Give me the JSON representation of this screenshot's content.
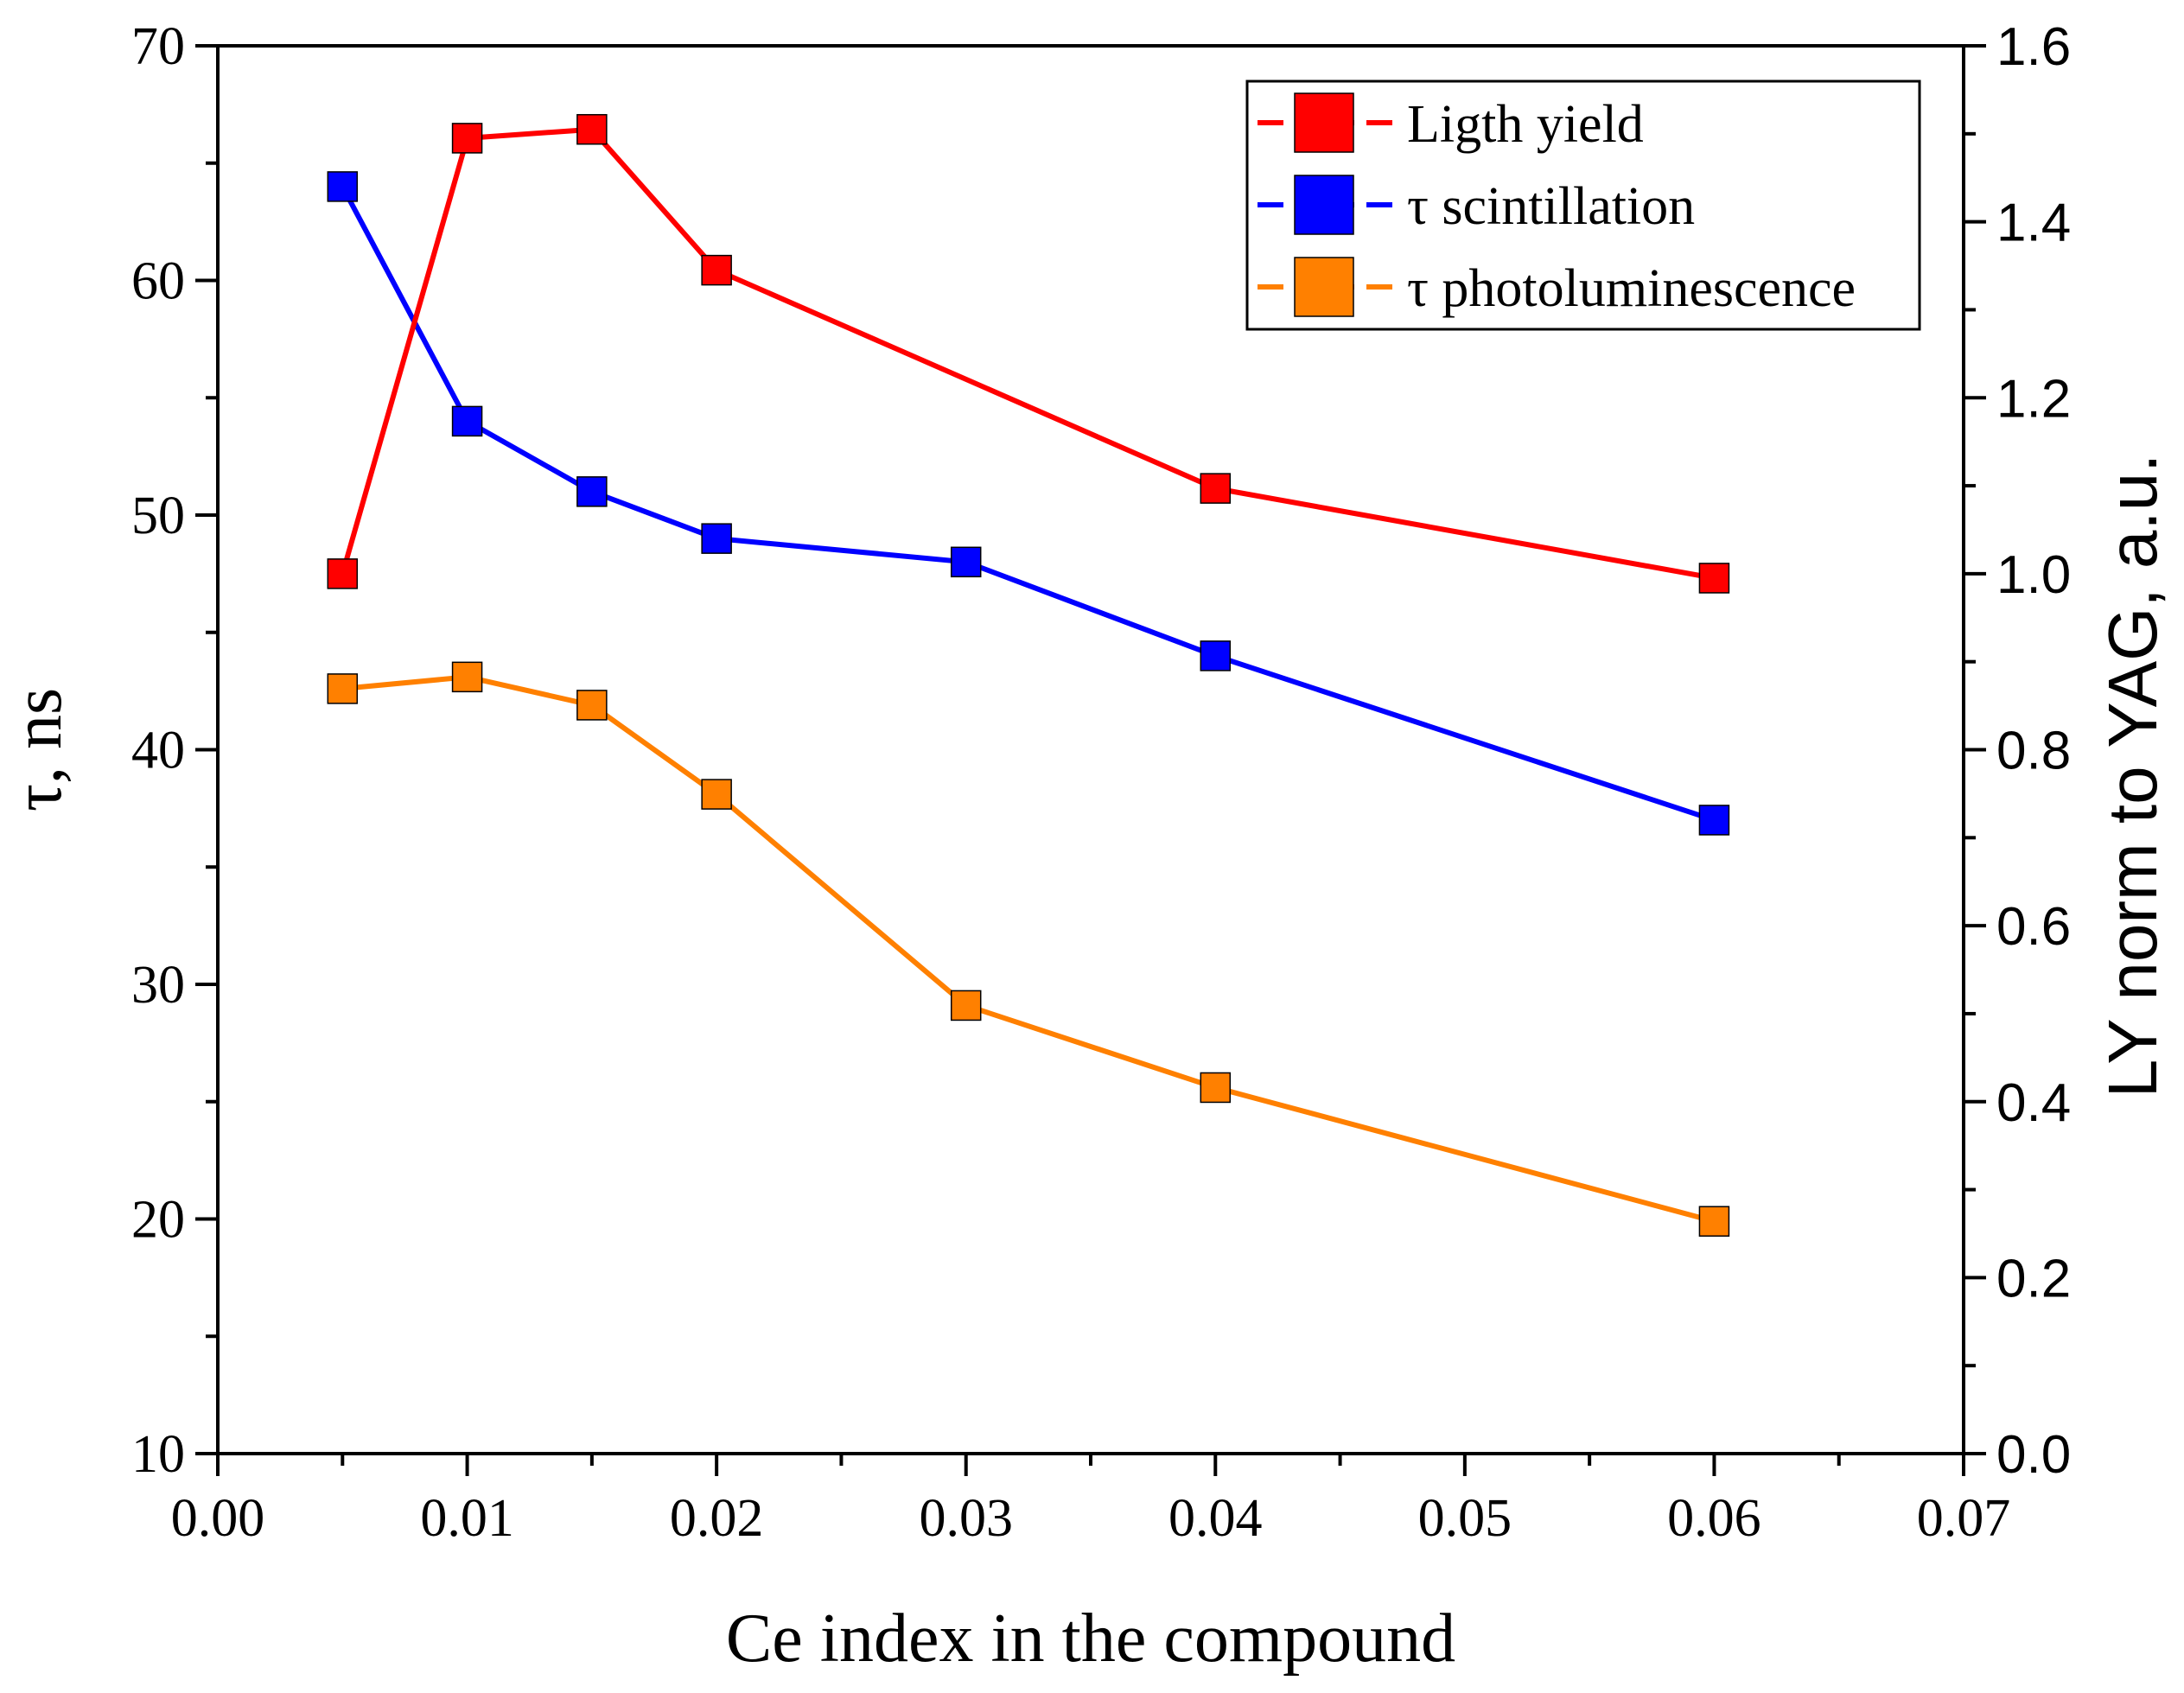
{
  "chart_data": {
    "type": "line",
    "xlabel": "Ce index in the compound",
    "ylabel_left": "τ, ns",
    "ylabel_right": "LY norm to YAG, a.u.",
    "xlim": [
      0.0,
      0.07
    ],
    "ylim_left": [
      10,
      70
    ],
    "ylim_right": [
      0.0,
      1.6
    ],
    "x_ticks": [
      "0.00",
      "0.01",
      "0.02",
      "0.03",
      "0.04",
      "0.05",
      "0.06",
      "0.07"
    ],
    "y_left_ticks": [
      "10",
      "20",
      "30",
      "40",
      "50",
      "60",
      "70"
    ],
    "y_right_ticks": [
      "0.0",
      "0.2",
      "0.4",
      "0.6",
      "0.8",
      "1.0",
      "1.2",
      "1.4",
      "1.6"
    ],
    "grid": false,
    "legend_position": "top-right",
    "series": [
      {
        "name": "Ligth yield",
        "axis": "right",
        "color": "#ff0000",
        "x": [
          0.005,
          0.01,
          0.015,
          0.02,
          0.04,
          0.06
        ],
        "y": [
          1.0,
          1.495,
          1.505,
          1.345,
          1.097,
          0.995
        ]
      },
      {
        "name": "τ scintillation",
        "axis": "left",
        "color": "#0000ff",
        "x": [
          0.005,
          0.01,
          0.015,
          0.02,
          0.03,
          0.04,
          0.06
        ],
        "y": [
          64,
          54,
          51,
          49,
          48,
          44,
          37
        ]
      },
      {
        "name": "τ photoluminescence",
        "axis": "left",
        "color": "#ff8000",
        "x": [
          0.005,
          0.01,
          0.015,
          0.02,
          0.03,
          0.04,
          0.06
        ],
        "y": [
          42.6,
          43.1,
          41.9,
          38.1,
          29.1,
          25.6,
          19.9
        ]
      }
    ]
  }
}
